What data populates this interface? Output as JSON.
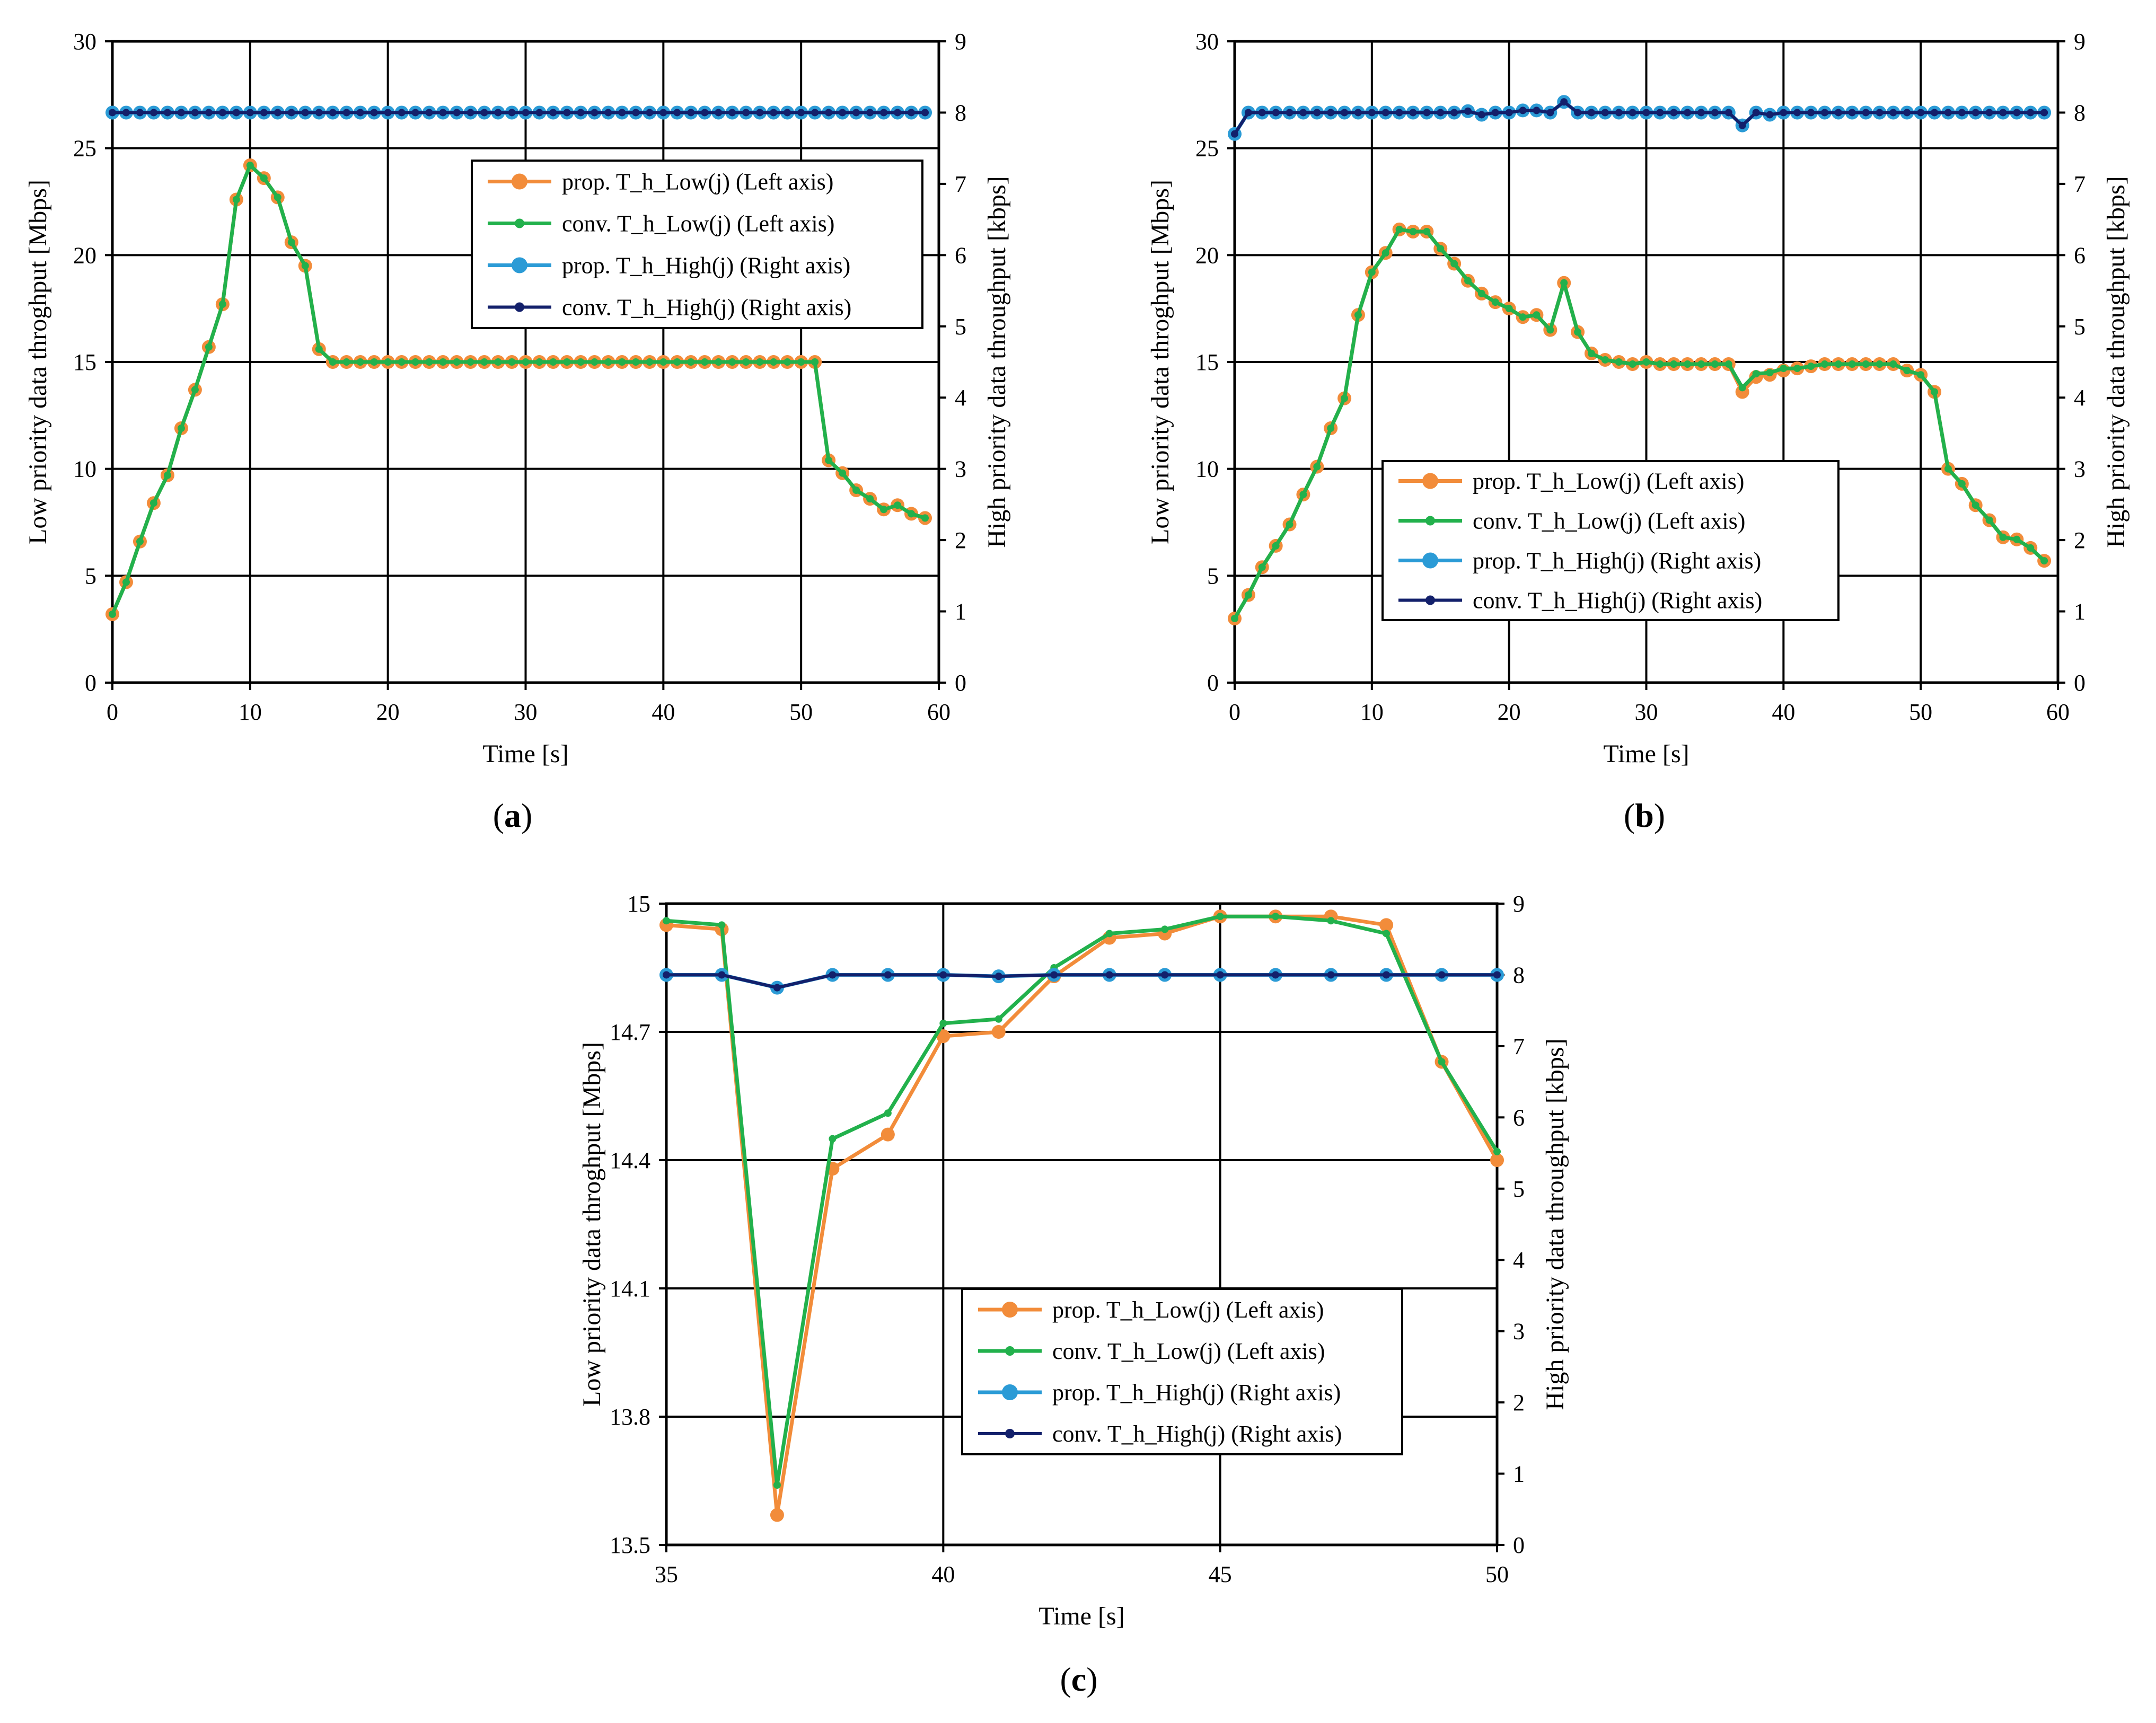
{
  "colors": {
    "prop_low": "#f28c3a",
    "conv_low": "#22b14c",
    "prop_high": "#2b9bd6",
    "conv_high": "#13206b",
    "grid": "#000000"
  },
  "legend": [
    {
      "label": "prop. T_h_Low(j) (Left axis)",
      "style": "prop_low"
    },
    {
      "label": "conv.  T_h_Low(j) (Left axis)",
      "style": "conv_low"
    },
    {
      "label": "prop. T_h_High(j) (Right axis)",
      "style": "prop_high"
    },
    {
      "label": "conv. T_h_High(j) (Right axis)",
      "style": "conv_high"
    }
  ],
  "chart_data": [
    {
      "id": "a",
      "panel_label": "a",
      "type": "line",
      "xlabel": "Time [s]",
      "ylabel_left": "Low priority data throghput [Mbps]",
      "ylabel_right": "High priority data throughput [kbps]",
      "xlim": [
        0,
        60
      ],
      "xticks": [
        0,
        10,
        20,
        30,
        40,
        50,
        60
      ],
      "ylim_left": [
        0,
        30
      ],
      "yticks_left": [
        0,
        5,
        10,
        15,
        20,
        25,
        30
      ],
      "ylim_right": [
        0,
        9
      ],
      "yticks_right": [
        0,
        1,
        2,
        3,
        4,
        5,
        6,
        7,
        8,
        9
      ],
      "legend_position": "upper-right",
      "x": [
        0,
        1,
        2,
        3,
        4,
        5,
        6,
        7,
        8,
        9,
        10,
        11,
        12,
        13,
        14,
        15,
        16,
        17,
        18,
        19,
        20,
        21,
        22,
        23,
        24,
        25,
        26,
        27,
        28,
        29,
        30,
        31,
        32,
        33,
        34,
        35,
        36,
        37,
        38,
        39,
        40,
        41,
        42,
        43,
        44,
        45,
        46,
        47,
        48,
        49,
        50,
        51,
        52,
        53,
        54,
        55,
        56,
        57,
        58,
        59
      ],
      "series": [
        {
          "name": "prop. T_h_Low(j) (Left axis)",
          "axis": "left",
          "style": "prop_low",
          "values": [
            3.2,
            4.7,
            6.6,
            8.4,
            9.7,
            11.9,
            13.7,
            15.7,
            17.7,
            22.6,
            24.2,
            23.6,
            22.7,
            20.6,
            19.5,
            15.6,
            15.0,
            15.0,
            15.0,
            15.0,
            15.0,
            15.0,
            15.0,
            15.0,
            15.0,
            15.0,
            15.0,
            15.0,
            15.0,
            15.0,
            15.0,
            15.0,
            15.0,
            15.0,
            15.0,
            15.0,
            15.0,
            15.0,
            15.0,
            15.0,
            15.0,
            15.0,
            15.0,
            15.0,
            15.0,
            15.0,
            15.0,
            15.0,
            15.0,
            15.0,
            15.0,
            15.0,
            10.4,
            9.8,
            9.0,
            8.6,
            8.1,
            8.3,
            7.9,
            7.7
          ]
        },
        {
          "name": "conv.  T_h_Low(j) (Left axis)",
          "axis": "left",
          "style": "conv_low",
          "values": [
            3.2,
            4.7,
            6.6,
            8.4,
            9.7,
            11.9,
            13.7,
            15.7,
            17.7,
            22.6,
            24.2,
            23.6,
            22.7,
            20.6,
            19.5,
            15.6,
            15.0,
            15.0,
            15.0,
            15.0,
            15.0,
            15.0,
            15.0,
            15.0,
            15.0,
            15.0,
            15.0,
            15.0,
            15.0,
            15.0,
            15.0,
            15.0,
            15.0,
            15.0,
            15.0,
            15.0,
            15.0,
            15.0,
            15.0,
            15.0,
            15.0,
            15.0,
            15.0,
            15.0,
            15.0,
            15.0,
            15.0,
            15.0,
            15.0,
            15.0,
            15.0,
            15.0,
            10.4,
            9.8,
            9.0,
            8.6,
            8.1,
            8.3,
            7.9,
            7.7
          ]
        },
        {
          "name": "prop. T_h_High(j) (Right axis)",
          "axis": "right",
          "style": "prop_high",
          "values": [
            8,
            8,
            8,
            8,
            8,
            8,
            8,
            8,
            8,
            8,
            8,
            8,
            8,
            8,
            8,
            8,
            8,
            8,
            8,
            8,
            8,
            8,
            8,
            8,
            8,
            8,
            8,
            8,
            8,
            8,
            8,
            8,
            8,
            8,
            8,
            8,
            8,
            8,
            8,
            8,
            8,
            8,
            8,
            8,
            8,
            8,
            8,
            8,
            8,
            8,
            8,
            8,
            8,
            8,
            8,
            8,
            8,
            8,
            8,
            8
          ]
        },
        {
          "name": "conv. T_h_High(j) (Right axis)",
          "axis": "right",
          "style": "conv_high",
          "values": [
            8,
            8,
            8,
            8,
            8,
            8,
            8,
            8,
            8,
            8,
            8,
            8,
            8,
            8,
            8,
            8,
            8,
            8,
            8,
            8,
            8,
            8,
            8,
            8,
            8,
            8,
            8,
            8,
            8,
            8,
            8,
            8,
            8,
            8,
            8,
            8,
            8,
            8,
            8,
            8,
            8,
            8,
            8,
            8,
            8,
            8,
            8,
            8,
            8,
            8,
            8,
            8,
            8,
            8,
            8,
            8,
            8,
            8,
            8,
            8
          ]
        }
      ]
    },
    {
      "id": "b",
      "panel_label": "b",
      "type": "line",
      "xlabel": "Time [s]",
      "ylabel_left": "Low priority data throghput [Mbps]",
      "ylabel_right": "High priority data throughput [kbps]",
      "xlim": [
        0,
        60
      ],
      "xticks": [
        0,
        10,
        20,
        30,
        40,
        50,
        60
      ],
      "ylim_left": [
        0,
        30
      ],
      "yticks_left": [
        0,
        5,
        10,
        15,
        20,
        25,
        30
      ],
      "ylim_right": [
        0,
        9
      ],
      "yticks_right": [
        0,
        1,
        2,
        3,
        4,
        5,
        6,
        7,
        8,
        9
      ],
      "legend_position": "lower-center",
      "x": [
        0,
        1,
        2,
        3,
        4,
        5,
        6,
        7,
        8,
        9,
        10,
        11,
        12,
        13,
        14,
        15,
        16,
        17,
        18,
        19,
        20,
        21,
        22,
        23,
        24,
        25,
        26,
        27,
        28,
        29,
        30,
        31,
        32,
        33,
        34,
        35,
        36,
        37,
        38,
        39,
        40,
        41,
        42,
        43,
        44,
        45,
        46,
        47,
        48,
        49,
        50,
        51,
        52,
        53,
        54,
        55,
        56,
        57,
        58,
        59
      ],
      "series": [
        {
          "name": "prop. T_h_Low(j) (Left axis)",
          "axis": "left",
          "style": "prop_low",
          "values": [
            3.0,
            4.1,
            5.4,
            6.4,
            7.4,
            8.8,
            10.1,
            11.9,
            13.3,
            17.2,
            19.2,
            20.1,
            21.2,
            21.1,
            21.1,
            20.3,
            19.6,
            18.8,
            18.2,
            17.8,
            17.5,
            17.1,
            17.2,
            16.5,
            18.7,
            16.4,
            15.4,
            15.1,
            15.0,
            14.9,
            15.0,
            14.9,
            14.9,
            14.9,
            14.9,
            14.9,
            14.9,
            13.6,
            14.3,
            14.4,
            14.6,
            14.7,
            14.8,
            14.9,
            14.9,
            14.9,
            14.9,
            14.9,
            14.9,
            14.6,
            14.4,
            13.6,
            10.0,
            9.3,
            8.3,
            7.6,
            6.8,
            6.7,
            6.3,
            5.7
          ]
        },
        {
          "name": "conv.  T_h_Low(j) (Left axis)",
          "axis": "left",
          "style": "conv_low",
          "values": [
            3.0,
            4.1,
            5.4,
            6.4,
            7.4,
            8.8,
            10.1,
            11.9,
            13.3,
            17.2,
            19.2,
            20.1,
            21.2,
            21.1,
            21.1,
            20.3,
            19.6,
            18.8,
            18.2,
            17.8,
            17.5,
            17.1,
            17.2,
            16.5,
            18.7,
            16.4,
            15.4,
            15.1,
            15.0,
            14.9,
            15.0,
            14.9,
            14.9,
            14.9,
            14.9,
            14.9,
            14.9,
            13.8,
            14.45,
            14.5,
            14.7,
            14.7,
            14.8,
            14.9,
            14.9,
            14.9,
            14.9,
            14.9,
            14.9,
            14.6,
            14.4,
            13.6,
            10.0,
            9.3,
            8.3,
            7.6,
            6.8,
            6.7,
            6.3,
            5.7
          ]
        },
        {
          "name": "prop. T_h_High(j) (Right axis)",
          "axis": "right",
          "style": "prop_high",
          "values": [
            7.7,
            8,
            8,
            8,
            8,
            8,
            8,
            8,
            8,
            8,
            8,
            8,
            8,
            8,
            8,
            8,
            8,
            8.02,
            7.97,
            8,
            8,
            8.03,
            8.03,
            8,
            8.15,
            8,
            8,
            8,
            8,
            8,
            8,
            8,
            8,
            8,
            8,
            8,
            8,
            7.82,
            8,
            7.97,
            8,
            8,
            8,
            8,
            8,
            8,
            8,
            8,
            8,
            8,
            8,
            8,
            8,
            8,
            8,
            8,
            8,
            8,
            8,
            8
          ]
        },
        {
          "name": "conv. T_h_High(j) (Right axis)",
          "axis": "right",
          "style": "conv_high",
          "values": [
            7.7,
            8,
            8,
            8,
            8,
            8,
            8,
            8,
            8,
            8,
            8,
            8,
            8,
            8,
            8,
            8,
            8,
            8.02,
            7.97,
            8,
            8,
            8.03,
            8.03,
            8,
            8.15,
            8,
            8,
            8,
            8,
            8,
            8,
            8,
            8,
            8,
            8,
            8,
            8,
            7.82,
            8,
            7.97,
            8,
            8,
            8,
            8,
            8,
            8,
            8,
            8,
            8,
            8,
            8,
            8,
            8,
            8,
            8,
            8,
            8,
            8,
            8,
            8
          ]
        }
      ]
    },
    {
      "id": "c",
      "panel_label": "c",
      "type": "line",
      "xlabel": "Time [s]",
      "ylabel_left": "Low priority data throghput [Mbps]",
      "ylabel_right": "High priority data throughput [kbps]",
      "xlim": [
        35,
        50
      ],
      "xticks": [
        35,
        40,
        45,
        50
      ],
      "ylim_left": [
        13.5,
        15
      ],
      "yticks_left": [
        13.5,
        13.8,
        14.1,
        14.4,
        14.7,
        15
      ],
      "ylim_right": [
        0,
        9
      ],
      "yticks_right": [
        0,
        1,
        2,
        3,
        4,
        5,
        6,
        7,
        8,
        9
      ],
      "legend_position": "lower-center",
      "x": [
        35,
        36,
        37,
        38,
        39,
        40,
        41,
        42,
        43,
        44,
        45,
        46,
        47,
        48,
        49,
        50
      ],
      "series": [
        {
          "name": "prop. T_h_Low(j) (Left axis)",
          "axis": "left",
          "style": "prop_low",
          "values": [
            14.95,
            14.94,
            13.57,
            14.38,
            14.46,
            14.69,
            14.7,
            14.83,
            14.92,
            14.93,
            14.97,
            14.97,
            14.97,
            14.95,
            14.63,
            14.4
          ]
        },
        {
          "name": "conv.  T_h_Low(j) (Left axis)",
          "axis": "left",
          "style": "conv_low",
          "values": [
            14.96,
            14.95,
            13.64,
            14.45,
            14.51,
            14.72,
            14.73,
            14.85,
            14.93,
            14.94,
            14.97,
            14.97,
            14.96,
            14.93,
            14.63,
            14.42
          ]
        },
        {
          "name": "prop. T_h_High(j) (Right axis)",
          "axis": "right",
          "style": "prop_high",
          "values": [
            8,
            8,
            7.82,
            8,
            8,
            8,
            7.98,
            8,
            8,
            8,
            8,
            8,
            8,
            8,
            8,
            8
          ]
        },
        {
          "name": "conv. T_h_High(j) (Right axis)",
          "axis": "right",
          "style": "conv_high",
          "values": [
            8,
            8,
            7.82,
            8,
            8,
            8,
            7.98,
            8,
            8,
            8,
            8,
            8,
            8,
            8,
            8,
            8
          ]
        }
      ]
    }
  ]
}
